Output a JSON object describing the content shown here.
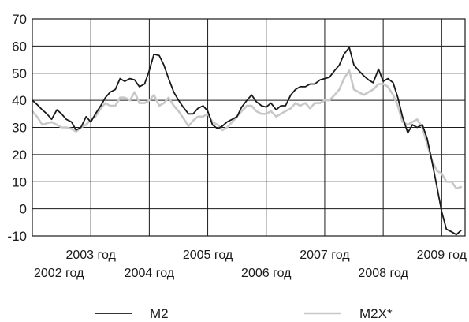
{
  "chart_data": {
    "type": "line",
    "title": "",
    "xlabel": "",
    "ylabel": "",
    "ylim": [
      -10,
      70
    ],
    "y_ticks": [
      -10,
      0,
      10,
      20,
      30,
      40,
      50,
      60,
      70
    ],
    "xlim": [
      2002.0,
      2009.4
    ],
    "grid": true,
    "x_tick_labels": [
      {
        "x": 2002,
        "label": "2002 год",
        "row": "lower"
      },
      {
        "x": 2003,
        "label": "2003 год",
        "row": "upper"
      },
      {
        "x": 2004,
        "label": "2004 год",
        "row": "lower"
      },
      {
        "x": 2005,
        "label": "2005 год",
        "row": "upper"
      },
      {
        "x": 2006,
        "label": "2006 год",
        "row": "lower"
      },
      {
        "x": 2007,
        "label": "2007 год",
        "row": "upper"
      },
      {
        "x": 2008,
        "label": "2008 год",
        "row": "lower"
      },
      {
        "x": 2009,
        "label": "2009 год",
        "row": "upper"
      }
    ],
    "legend_position": "bottom",
    "series": [
      {
        "name": "M2",
        "color": "#1a1a1a",
        "x": [
          2002.0,
          2002.08,
          2002.17,
          2002.25,
          2002.33,
          2002.42,
          2002.5,
          2002.58,
          2002.67,
          2002.75,
          2002.83,
          2002.92,
          2003.0,
          2003.08,
          2003.17,
          2003.25,
          2003.33,
          2003.42,
          2003.5,
          2003.58,
          2003.67,
          2003.75,
          2003.83,
          2003.92,
          2004.0,
          2004.08,
          2004.17,
          2004.25,
          2004.33,
          2004.42,
          2004.5,
          2004.58,
          2004.67,
          2004.75,
          2004.83,
          2004.92,
          2005.0,
          2005.08,
          2005.17,
          2005.25,
          2005.33,
          2005.42,
          2005.5,
          2005.58,
          2005.67,
          2005.75,
          2005.83,
          2005.92,
          2006.0,
          2006.08,
          2006.17,
          2006.25,
          2006.33,
          2006.42,
          2006.5,
          2006.58,
          2006.67,
          2006.75,
          2006.83,
          2006.92,
          2007.0,
          2007.08,
          2007.17,
          2007.25,
          2007.33,
          2007.42,
          2007.5,
          2007.58,
          2007.67,
          2007.75,
          2007.83,
          2007.92,
          2008.0,
          2008.08,
          2008.17,
          2008.25,
          2008.33,
          2008.42,
          2008.5,
          2008.58,
          2008.67,
          2008.75,
          2008.83,
          2008.92,
          2009.0,
          2009.08,
          2009.17,
          2009.25,
          2009.33
        ],
        "y": [
          40,
          38.5,
          36.5,
          35,
          33,
          36.5,
          35,
          33,
          32,
          29,
          30,
          34,
          32,
          35,
          38,
          41,
          43,
          44,
          48,
          47,
          48,
          47.5,
          45,
          46,
          51,
          57,
          56.5,
          53,
          48,
          43,
          40,
          37.5,
          35,
          35,
          37,
          38,
          36,
          31,
          29.5,
          30.5,
          32,
          33,
          34,
          37.5,
          40,
          42,
          39.5,
          38,
          37.5,
          39,
          36.5,
          38,
          38,
          42,
          44,
          45,
          45,
          46,
          46,
          47.5,
          48,
          48.5,
          51,
          53,
          57,
          59.5,
          53,
          51,
          49,
          47.5,
          46.5,
          51.5,
          47,
          48,
          46.5,
          41,
          34,
          28,
          31,
          30,
          31,
          26,
          18,
          8,
          -1,
          -7.5,
          -8.5,
          -9.5,
          -8
        ]
      },
      {
        "name": "M2X*",
        "color": "#c8c8c8",
        "x": [
          2002.0,
          2002.08,
          2002.17,
          2002.25,
          2002.33,
          2002.42,
          2002.5,
          2002.58,
          2002.67,
          2002.75,
          2002.83,
          2002.92,
          2003.0,
          2003.08,
          2003.17,
          2003.25,
          2003.33,
          2003.42,
          2003.5,
          2003.58,
          2003.67,
          2003.75,
          2003.83,
          2003.92,
          2004.0,
          2004.08,
          2004.17,
          2004.25,
          2004.33,
          2004.42,
          2004.5,
          2004.58,
          2004.67,
          2004.75,
          2004.83,
          2004.92,
          2005.0,
          2005.08,
          2005.17,
          2005.25,
          2005.33,
          2005.42,
          2005.5,
          2005.58,
          2005.67,
          2005.75,
          2005.83,
          2005.92,
          2006.0,
          2006.08,
          2006.17,
          2006.25,
          2006.33,
          2006.42,
          2006.5,
          2006.58,
          2006.67,
          2006.75,
          2006.83,
          2006.92,
          2007.0,
          2007.08,
          2007.17,
          2007.25,
          2007.33,
          2007.42,
          2007.5,
          2007.58,
          2007.67,
          2007.75,
          2007.83,
          2007.92,
          2008.0,
          2008.08,
          2008.17,
          2008.25,
          2008.33,
          2008.42,
          2008.5,
          2008.58,
          2008.67,
          2008.75,
          2008.83,
          2008.92,
          2009.0,
          2009.08,
          2009.17,
          2009.25,
          2009.33
        ],
        "y": [
          36,
          34,
          31,
          31.5,
          32,
          31,
          30,
          30,
          29.5,
          28.5,
          30,
          31,
          33,
          34,
          37,
          39,
          38,
          38,
          41,
          41,
          40,
          43,
          39,
          39,
          40,
          42,
          38,
          39,
          41,
          38,
          36,
          33.5,
          30.5,
          32.5,
          34,
          34,
          35,
          32,
          31,
          29,
          30,
          32,
          34,
          36,
          38,
          38,
          36,
          35,
          35,
          36,
          34,
          35,
          36,
          37,
          39,
          38,
          39,
          37,
          39,
          39,
          40,
          40,
          42,
          44,
          48,
          51,
          44,
          43,
          42,
          43,
          44,
          46,
          46,
          45,
          42,
          38,
          32,
          31,
          32,
          33,
          30,
          24,
          18,
          14,
          13,
          10,
          10,
          7.5,
          8
        ]
      }
    ]
  },
  "legend": [
    {
      "label": "M2",
      "color": "#1a1a1a"
    },
    {
      "label": "M2X*",
      "color": "#c8c8c8"
    }
  ]
}
